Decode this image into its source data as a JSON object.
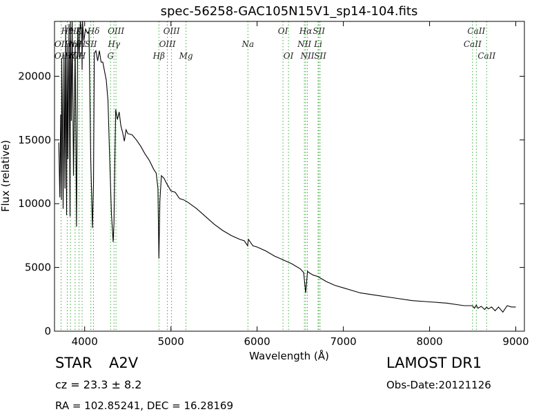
{
  "chart_data": {
    "type": "line",
    "title": "spec-56258-GAC105N15V1_sp14-104.fits",
    "xlabel": "Wavelength (Å)",
    "ylabel": "Flux (relative)",
    "xlim": [
      3650,
      9100
    ],
    "ylim": [
      0,
      24300
    ],
    "xticks": [
      4000,
      5000,
      6000,
      7000,
      8000,
      9000
    ],
    "yticks": [
      0,
      5000,
      10000,
      15000,
      20000
    ],
    "grid": false,
    "line_color": "#000000",
    "marker_color": "#33aa33",
    "series": [
      {
        "x": [
          3700,
          3712,
          3721,
          3730,
          3734,
          3740,
          3750,
          3760,
          3771,
          3780,
          3790,
          3797,
          3805,
          3818,
          3830,
          3835,
          3845,
          3855,
          3870,
          3889,
          3905,
          3920,
          3935,
          3950,
          3965,
          3970,
          3975,
          3990,
          4010,
          4030,
          4050,
          4070,
          4090,
          4102,
          4112,
          4130,
          4150,
          4170,
          4190,
          4210,
          4230,
          4250,
          4270,
          4290,
          4310,
          4330,
          4340,
          4348,
          4360,
          4380,
          4400,
          4420,
          4440,
          4460,
          4480,
          4500,
          4550,
          4600,
          4650,
          4700,
          4750,
          4800,
          4830,
          4850,
          4861,
          4872,
          4890,
          4920,
          4950,
          5000,
          5050,
          5100,
          5150,
          5200,
          5300,
          5400,
          5500,
          5600,
          5700,
          5800,
          5850,
          5890,
          5895,
          5900,
          5950,
          6000,
          6100,
          6200,
          6300,
          6400,
          6500,
          6540,
          6563,
          6585,
          6600,
          6650,
          6700,
          6800,
          6900,
          7000,
          7200,
          7400,
          7600,
          7800,
          8000,
          8200,
          8400,
          8498,
          8520,
          8542,
          8560,
          8600,
          8640,
          8662,
          8680,
          8720,
          8760,
          8800,
          8850,
          8900,
          8950,
          9000
        ],
        "values": [
          14800,
          10500,
          17000,
          10300,
          21400,
          18500,
          9600,
          21700,
          11200,
          24000,
          9100,
          22500,
          13500,
          24100,
          9000,
          24300,
          16500,
          24300,
          12200,
          22400,
          8200,
          23800,
          21500,
          24300,
          23400,
          20500,
          24300,
          22800,
          23700,
          23400,
          23500,
          13500,
          8100,
          11500,
          21800,
          22000,
          21200,
          22000,
          21100,
          21100,
          20400,
          19700,
          18100,
          13500,
          9200,
          7000,
          8500,
          12500,
          17400,
          16600,
          17200,
          16100,
          15600,
          14900,
          15800,
          15500,
          15400,
          15000,
          14500,
          13900,
          13400,
          12700,
          12400,
          11200,
          5700,
          10200,
          12200,
          12000,
          11600,
          11000,
          10900,
          10400,
          10300,
          10100,
          9600,
          9000,
          8400,
          7900,
          7500,
          7200,
          7100,
          6700,
          7000,
          7200,
          6700,
          6600,
          6300,
          5900,
          5600,
          5300,
          4900,
          4600,
          3000,
          4700,
          4600,
          4400,
          4300,
          3900,
          3600,
          3400,
          3000,
          2800,
          2600,
          2400,
          2300,
          2200,
          2000,
          2000,
          1800,
          2050,
          1800,
          1950,
          1700,
          1900,
          1750,
          1900,
          1600,
          1900,
          1500,
          2000,
          1900,
          1900
        ]
      }
    ],
    "lines": [
      {
        "wl": 3727,
        "top": "OII",
        "bottom": "OII"
      },
      {
        "wl": 3798,
        "top": "Hθ",
        "bottom": "Hη"
      },
      {
        "wl": 3835,
        "top": "Hη",
        "bottom": "Hζ"
      },
      {
        "wl": 3889,
        "top": "Hζ",
        "bottom": "NII"
      },
      {
        "wl": 3934,
        "top": "K",
        "bottom": "H"
      },
      {
        "wl": 3970,
        "top": "H",
        "bottom": "SII"
      },
      {
        "wl": 4072,
        "top": "SII",
        "bottom": "Hδ"
      },
      {
        "wl": 4102,
        "top": "Hδ",
        "bottom": "Hδ"
      },
      {
        "wl": 4300,
        "top": "G",
        "bottom": "G"
      },
      {
        "wl": 4340,
        "top": "Hγ",
        "bottom": "Hγ"
      },
      {
        "wl": 4363,
        "top": "OIII",
        "bottom": "OIII"
      },
      {
        "wl": 4861,
        "top": "Hβ",
        "bottom": "Hβ"
      },
      {
        "wl": 4959,
        "top": "OIII",
        "bottom": "OIII"
      },
      {
        "wl": 5007,
        "top": "OIII",
        "bottom": "OIII"
      },
      {
        "wl": 5175,
        "top": "Mg",
        "bottom": "Mg"
      },
      {
        "wl": 5893,
        "top": "Na",
        "bottom": "Na"
      },
      {
        "wl": 6300,
        "top": "OI",
        "bottom": "OI"
      },
      {
        "wl": 6364,
        "top": "OI",
        "bottom": "OI"
      },
      {
        "wl": 6548,
        "top": "NII",
        "bottom": "NII"
      },
      {
        "wl": 6563,
        "top": "Hα",
        "bottom": "Hα"
      },
      {
        "wl": 6583,
        "top": "NII",
        "bottom": "NII"
      },
      {
        "wl": 6707,
        "top": "Li",
        "bottom": "Li"
      },
      {
        "wl": 6716,
        "top": "SII",
        "bottom": "SII"
      },
      {
        "wl": 6731,
        "top": "SII",
        "bottom": "SII"
      },
      {
        "wl": 8498,
        "top": "CaII",
        "bottom": "CaII"
      },
      {
        "wl": 8542,
        "top": "CaII",
        "bottom": "CaII"
      },
      {
        "wl": 8662,
        "top": "CaII",
        "bottom": "CaII"
      }
    ],
    "line_labels": [
      {
        "text": "Hθ",
        "wl": 3798,
        "row": 0
      },
      {
        "text": "Hη",
        "wl": 3835,
        "row": 1
      },
      {
        "text": "Hζ",
        "wl": 3889,
        "row": 0
      },
      {
        "text": "K",
        "wl": 3934,
        "row": 0
      },
      {
        "text": "Hδ",
        "wl": 4102,
        "row": 0
      },
      {
        "text": "OIII",
        "wl": 4363,
        "row": 0
      },
      {
        "text": "OIII",
        "wl": 5007,
        "row": 0
      },
      {
        "text": "OI",
        "wl": 6300,
        "row": 0
      },
      {
        "text": "Hα",
        "wl": 6563,
        "row": 0
      },
      {
        "text": "SII",
        "wl": 6716,
        "row": 0
      },
      {
        "text": "CaII",
        "wl": 8542,
        "row": 0
      },
      {
        "text": "OII",
        "wl": 3727,
        "row": 1
      },
      {
        "text": "NII",
        "wl": 3889,
        "row": 1
      },
      {
        "text": "H",
        "wl": 3970,
        "row": 1
      },
      {
        "text": "SII",
        "wl": 4072,
        "row": 1
      },
      {
        "text": "Hγ",
        "wl": 4340,
        "row": 1
      },
      {
        "text": "OIII",
        "wl": 4959,
        "row": 1
      },
      {
        "text": "Na",
        "wl": 5893,
        "row": 1
      },
      {
        "text": "NII",
        "wl": 6548,
        "row": 1
      },
      {
        "text": "Li",
        "wl": 6707,
        "row": 1
      },
      {
        "text": "CaII",
        "wl": 8498,
        "row": 1
      },
      {
        "text": "OII",
        "wl": 3727,
        "row": 2
      },
      {
        "text": "Hζ",
        "wl": 3835,
        "row": 2
      },
      {
        "text": "NII",
        "wl": 3889,
        "row": 2
      },
      {
        "text": "H",
        "wl": 3970,
        "row": 2
      },
      {
        "text": "G",
        "wl": 4300,
        "row": 2
      },
      {
        "text": "Hβ",
        "wl": 4861,
        "row": 2
      },
      {
        "text": "Mg",
        "wl": 5175,
        "row": 2
      },
      {
        "text": "OI",
        "wl": 6364,
        "row": 2
      },
      {
        "text": "NII",
        "wl": 6583,
        "row": 2
      },
      {
        "text": "SII",
        "wl": 6731,
        "row": 2
      },
      {
        "text": "CaII",
        "wl": 8662,
        "row": 2
      }
    ]
  },
  "info": {
    "object_type": "STAR",
    "subclass": "A2V",
    "redshift": "cz = 23.3  ± 8.2",
    "radec": "RA = 102.85241, DEC = 16.28169",
    "survey": "LAMOST DR1",
    "obs_date": "Obs-Date:20121126"
  }
}
